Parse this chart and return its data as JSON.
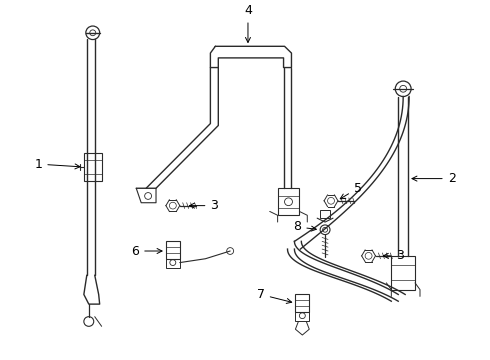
{
  "background_color": "#ffffff",
  "line_color": "#2a2a2a",
  "label_color": "#000000",
  "figsize": [
    4.9,
    3.6
  ],
  "dpi": 100
}
